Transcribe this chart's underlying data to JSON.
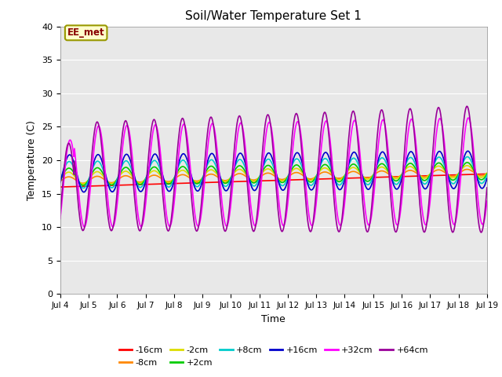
{
  "title": "Soil/Water Temperature Set 1",
  "xlabel": "Time",
  "ylabel": "Temperature (C)",
  "xlim": [
    0,
    15
  ],
  "ylim": [
    0,
    40
  ],
  "yticks": [
    0,
    5,
    10,
    15,
    20,
    25,
    30,
    35,
    40
  ],
  "xtick_labels": [
    "Jul 4",
    "Jul 5",
    "Jul 6",
    "Jul 7",
    "Jul 8",
    "Jul 9",
    "Jul 10",
    "Jul 11",
    "Jul 12",
    "Jul 13",
    "Jul 14",
    "Jul 15",
    "Jul 16",
    "Jul 17",
    "Jul 18",
    "Jul 19"
  ],
  "annotation_text": "EE_met",
  "annotation_bg": "#ffffcc",
  "annotation_border": "#999900",
  "annotation_text_color": "#880000",
  "series_order": [
    "-16cm",
    "-8cm",
    "-2cm",
    "+2cm",
    "+8cm",
    "+16cm",
    "+32cm",
    "+64cm"
  ],
  "series": {
    "-16cm": {
      "color": "#ff0000",
      "lw": 1.2
    },
    "-8cm": {
      "color": "#ff8800",
      "lw": 1.2
    },
    "-2cm": {
      "color": "#dddd00",
      "lw": 1.2
    },
    "+2cm": {
      "color": "#00cc00",
      "lw": 1.2
    },
    "+8cm": {
      "color": "#00cccc",
      "lw": 1.2
    },
    "+16cm": {
      "color": "#0000cc",
      "lw": 1.2
    },
    "+32cm": {
      "color": "#ff00ff",
      "lw": 1.2
    },
    "+64cm": {
      "color": "#990099",
      "lw": 1.2
    }
  },
  "bg_color": "#e8e8e8",
  "grid_color": "#ffffff",
  "n_days": 15,
  "pts_per_day": 48
}
